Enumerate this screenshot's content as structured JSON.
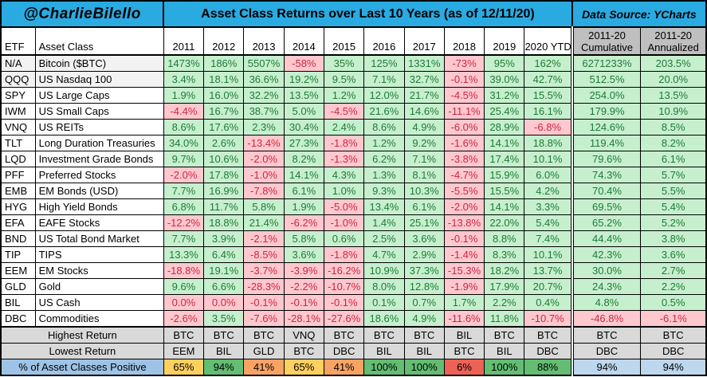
{
  "header": {
    "handle": "@CharlieBilello",
    "title": "Asset Class Returns over Last 10 Years (as of 12/11/20)",
    "source": "Data Source: YCharts"
  },
  "colors": {
    "band_cyan": "#29ABE2",
    "positive_bg": "#C6EFCE",
    "positive_text": "#217A36",
    "negative_bg": "#FFC7CE",
    "negative_text": "#C62A44",
    "summary_header_gray": "#BFBFBF",
    "footer_gray": "#D9D9D9",
    "footer_label_blue": "#9EC3E6",
    "footer_value_blue": "#BDD7EE",
    "pct_amber": "#FFD05F",
    "pct_orange": "#F8A263",
    "pct_red": "#EC6256",
    "pct_green": "#63BD72"
  },
  "chart_data": {
    "type": "table",
    "title": "Asset Class Returns over Last 10 Years (as of 12/11/20)",
    "columns": [
      "ETF",
      "Asset Class",
      "2011",
      "2012",
      "2013",
      "2014",
      "2015",
      "2016",
      "2017",
      "2018",
      "2019",
      "2020 YTD"
    ],
    "summary_columns": [
      {
        "line1": "2011-20",
        "line2": "Cumulative"
      },
      {
        "line1": "2011-20",
        "line2": "Annualized"
      }
    ],
    "rows": [
      {
        "etf": "N/A",
        "asset_class": "Bitcoin ($BTC)",
        "values": [
          "1473%",
          "186%",
          "5507%",
          "-58%",
          "35%",
          "125%",
          "1331%",
          "-73%",
          "95%",
          "162%"
        ],
        "cumulative": "6271233%",
        "annualized": "203.5%"
      },
      {
        "etf": "QQQ",
        "asset_class": "US Nasdaq 100",
        "values": [
          "3.4%",
          "18.1%",
          "36.6%",
          "19.2%",
          "9.5%",
          "7.1%",
          "32.7%",
          "-0.1%",
          "39.0%",
          "42.7%"
        ],
        "cumulative": "512.5%",
        "annualized": "20.0%"
      },
      {
        "etf": "SPY",
        "asset_class": "US Large Caps",
        "values": [
          "1.9%",
          "16.0%",
          "32.2%",
          "13.5%",
          "1.2%",
          "12.0%",
          "21.7%",
          "-4.5%",
          "31.2%",
          "15.5%"
        ],
        "cumulative": "254.0%",
        "annualized": "13.5%"
      },
      {
        "etf": "IWM",
        "asset_class": "US Small Caps",
        "values": [
          "-4.4%",
          "16.7%",
          "38.7%",
          "5.0%",
          "-4.5%",
          "21.6%",
          "14.6%",
          "-11.1%",
          "25.4%",
          "16.1%"
        ],
        "cumulative": "179.9%",
        "annualized": "10.9%"
      },
      {
        "etf": "VNQ",
        "asset_class": "US REITs",
        "values": [
          "8.6%",
          "17.6%",
          "2.3%",
          "30.4%",
          "2.4%",
          "8.6%",
          "4.9%",
          "-6.0%",
          "28.9%",
          "-6.8%"
        ],
        "cumulative": "124.6%",
        "annualized": "8.5%"
      },
      {
        "etf": "TLT",
        "asset_class": "Long Duration Treasuries",
        "values": [
          "34.0%",
          "2.6%",
          "-13.4%",
          "27.3%",
          "-1.8%",
          "1.2%",
          "9.2%",
          "-1.6%",
          "14.1%",
          "18.8%"
        ],
        "cumulative": "119.4%",
        "annualized": "8.2%"
      },
      {
        "etf": "LQD",
        "asset_class": "Investment Grade Bonds",
        "values": [
          "9.7%",
          "10.6%",
          "-2.0%",
          "8.2%",
          "-1.3%",
          "6.2%",
          "7.1%",
          "-3.8%",
          "17.4%",
          "10.1%"
        ],
        "cumulative": "79.6%",
        "annualized": "6.1%"
      },
      {
        "etf": "PFF",
        "asset_class": "Preferred Stocks",
        "values": [
          "-2.0%",
          "17.8%",
          "-1.0%",
          "14.1%",
          "4.3%",
          "1.3%",
          "8.1%",
          "-4.7%",
          "15.9%",
          "6.0%"
        ],
        "cumulative": "74.3%",
        "annualized": "5.7%"
      },
      {
        "etf": "EMB",
        "asset_class": "EM Bonds (USD)",
        "values": [
          "7.7%",
          "16.9%",
          "-7.8%",
          "6.1%",
          "1.0%",
          "9.3%",
          "10.3%",
          "-5.5%",
          "15.5%",
          "4.2%"
        ],
        "cumulative": "70.4%",
        "annualized": "5.5%"
      },
      {
        "etf": "HYG",
        "asset_class": "High Yield Bonds",
        "values": [
          "6.8%",
          "11.7%",
          "5.8%",
          "1.9%",
          "-5.0%",
          "13.4%",
          "6.1%",
          "-2.0%",
          "14.1%",
          "3.3%"
        ],
        "cumulative": "69.5%",
        "annualized": "5.4%"
      },
      {
        "etf": "EFA",
        "asset_class": "EAFE Stocks",
        "values": [
          "-12.2%",
          "18.8%",
          "21.4%",
          "-6.2%",
          "-1.0%",
          "1.4%",
          "25.1%",
          "-13.8%",
          "22.0%",
          "5.4%"
        ],
        "cumulative": "65.2%",
        "annualized": "5.2%"
      },
      {
        "etf": "BND",
        "asset_class": "US Total Bond Market",
        "values": [
          "7.7%",
          "3.9%",
          "-2.1%",
          "5.8%",
          "0.6%",
          "2.5%",
          "3.6%",
          "-0.1%",
          "8.8%",
          "7.4%"
        ],
        "cumulative": "44.4%",
        "annualized": "3.8%"
      },
      {
        "etf": "TIP",
        "asset_class": "TIPS",
        "values": [
          "13.3%",
          "6.4%",
          "-8.5%",
          "3.6%",
          "-1.8%",
          "4.7%",
          "2.9%",
          "-1.4%",
          "8.3%",
          "10.1%"
        ],
        "cumulative": "42.3%",
        "annualized": "3.6%"
      },
      {
        "etf": "EEM",
        "asset_class": "EM Stocks",
        "values": [
          "-18.8%",
          "19.1%",
          "-3.7%",
          "-3.9%",
          "-16.2%",
          "10.9%",
          "37.3%",
          "-15.3%",
          "18.2%",
          "13.7%"
        ],
        "cumulative": "30.0%",
        "annualized": "2.7%"
      },
      {
        "etf": "GLD",
        "asset_class": "Gold",
        "values": [
          "9.6%",
          "6.6%",
          "-28.3%",
          "-2.2%",
          "-10.7%",
          "8.0%",
          "12.8%",
          "-1.9%",
          "17.9%",
          "20.7%"
        ],
        "cumulative": "24.3%",
        "annualized": "2.2%"
      },
      {
        "etf": "BIL",
        "asset_class": "US Cash",
        "values": [
          "0.0%",
          "0.0%",
          "-0.1%",
          "-0.1%",
          "-0.1%",
          "0.1%",
          "0.7%",
          "1.7%",
          "2.2%",
          "0.4%"
        ],
        "cumulative": "4.8%",
        "annualized": "0.5%"
      },
      {
        "etf": "DBC",
        "asset_class": "Commodities",
        "values": [
          "-2.6%",
          "3.5%",
          "-7.6%",
          "-28.1%",
          "-27.6%",
          "18.6%",
          "4.9%",
          "-11.6%",
          "11.8%",
          "-10.7%"
        ],
        "cumulative": "-46.8%",
        "annualized": "-6.1%"
      }
    ],
    "footer": {
      "highest": {
        "label": "Highest Return",
        "values": [
          "BTC",
          "BTC",
          "BTC",
          "VNQ",
          "BTC",
          "BTC",
          "BTC",
          "BIL",
          "BTC",
          "BTC",
          "BTC",
          "BTC"
        ]
      },
      "lowest": {
        "label": "Lowest Return",
        "values": [
          "EEM",
          "BIL",
          "GLD",
          "BTC",
          "DBC",
          "BIL",
          "BIL",
          "BTC",
          "BIL",
          "DBC",
          "DBC",
          "DBC"
        ]
      },
      "positive": {
        "label": "% of Asset Classes Positive",
        "values": [
          "65%",
          "94%",
          "41%",
          "65%",
          "41%",
          "100%",
          "100%",
          "6%",
          "100%",
          "88%",
          "94%",
          "94%"
        ],
        "colors": [
          "amber",
          "green",
          "orange",
          "amber",
          "orange",
          "green",
          "green",
          "red",
          "green",
          "green",
          "blue",
          "blue"
        ]
      }
    }
  }
}
